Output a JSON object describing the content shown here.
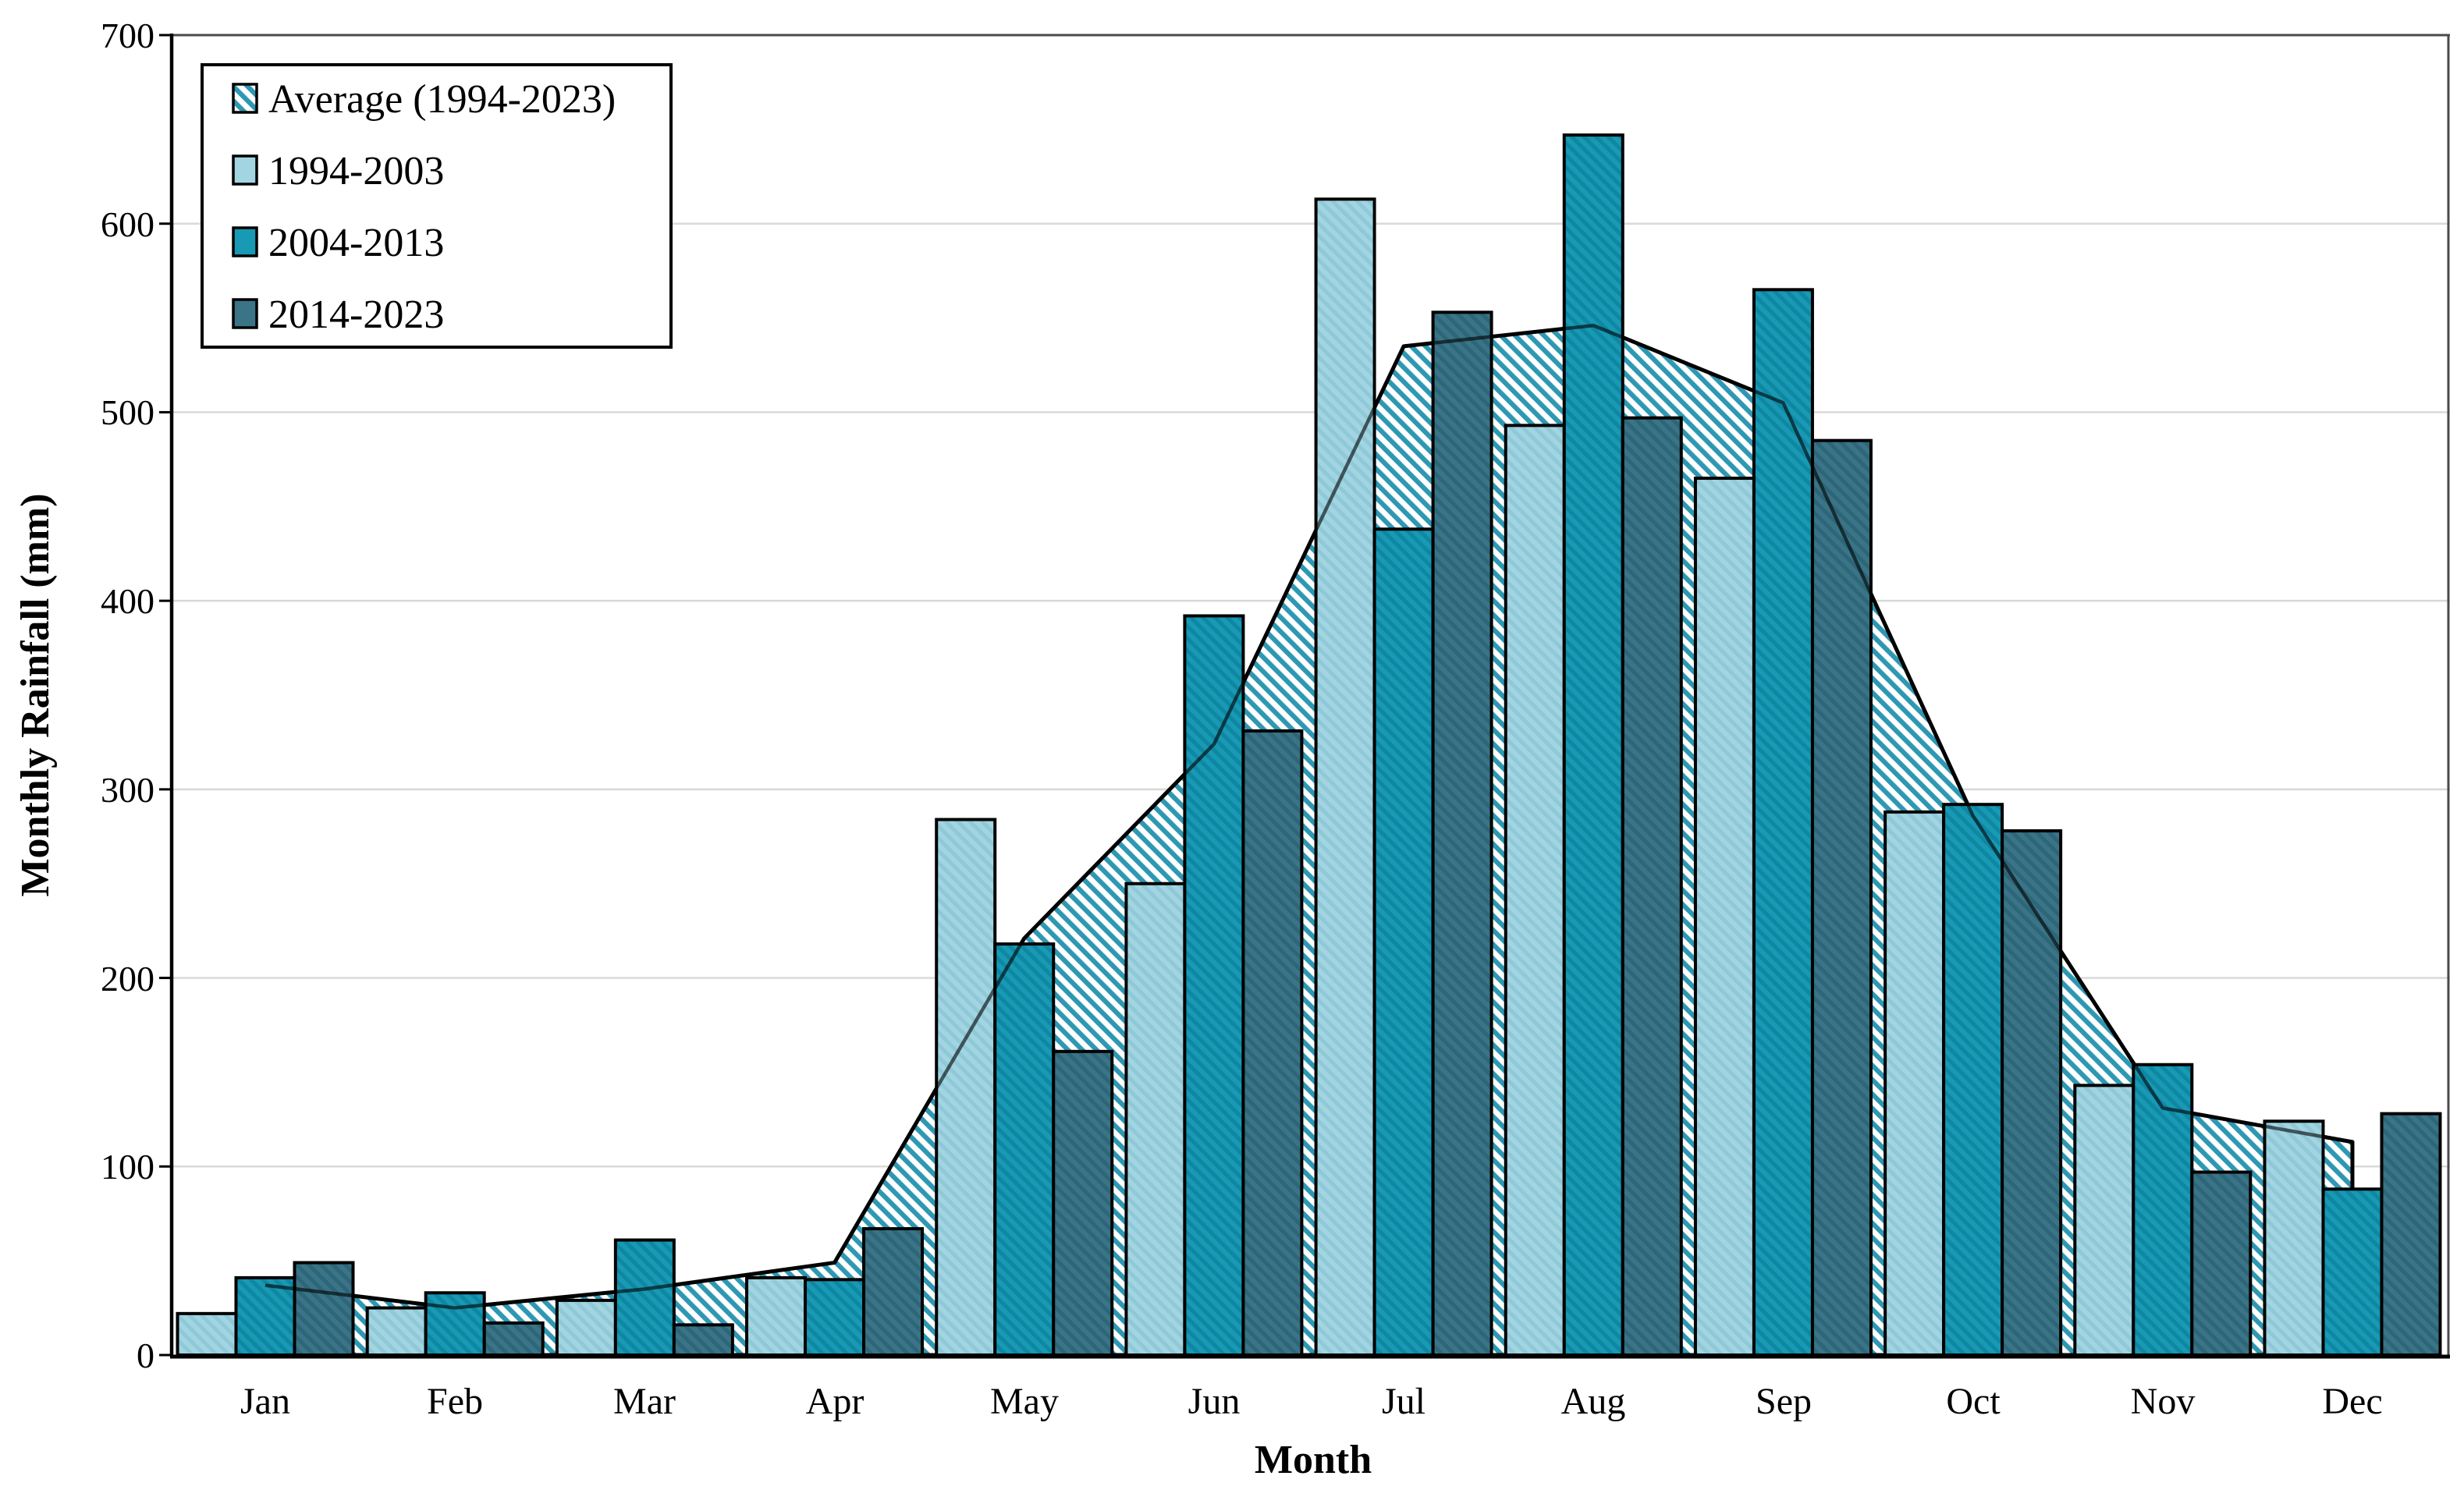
{
  "axes": {
    "y": {
      "title": "Monthly Rainfall (mm)",
      "ticks": [
        "0",
        "100",
        "200",
        "300",
        "400",
        "500",
        "600",
        "700"
      ],
      "min": 0,
      "max": 700,
      "step": 100
    },
    "x": {
      "title": "Month"
    }
  },
  "colors": {
    "background": "#ffffff",
    "gridline": "#d9d9d9",
    "frame": "#4a4a4a",
    "axis": "#000000",
    "bar_outline": "#000000",
    "avg_hatch_stripe": "#2e98b2",
    "series_1994_2003": "#a2d5e1",
    "series_2004_2013": "#1899b4",
    "series_2014_2023": "#3a7486"
  },
  "legend": {
    "position": "upper-left",
    "items": [
      {
        "label": "Average (1994-2023)",
        "swatch": "hatch"
      },
      {
        "label": "1994-2003",
        "swatch": "light-blue"
      },
      {
        "label": "2004-2013",
        "swatch": "teal"
      },
      {
        "label": "2014-2023",
        "swatch": "dark-teal"
      }
    ]
  },
  "chart_data": {
    "type": "bar",
    "title": "",
    "xlabel": "Month",
    "ylabel": "Monthly Rainfall (mm)",
    "ylim": [
      0,
      700
    ],
    "grid": true,
    "legend_position": "upper-left",
    "categories": [
      "Jan",
      "Feb",
      "Mar",
      "Apr",
      "May",
      "Jun",
      "Jul",
      "Aug",
      "Sep",
      "Oct",
      "Nov",
      "Dec"
    ],
    "series": [
      {
        "name": "Average (1994-2023)",
        "style": "hatched-area",
        "values": [
          37,
          25,
          35,
          49,
          221,
          324,
          535,
          546,
          505,
          286,
          131,
          113
        ]
      },
      {
        "name": "1994-2003",
        "style": "bar",
        "color": "#a2d5e1",
        "values": [
          22,
          25,
          29,
          41,
          284,
          250,
          613,
          493,
          465,
          288,
          143,
          124
        ]
      },
      {
        "name": "2004-2013",
        "style": "bar",
        "color": "#1899b4",
        "values": [
          41,
          33,
          61,
          40,
          218,
          392,
          438,
          647,
          565,
          292,
          154,
          88
        ]
      },
      {
        "name": "2014-2023",
        "style": "bar",
        "color": "#3a7486",
        "values": [
          49,
          17,
          16,
          67,
          161,
          331,
          553,
          497,
          485,
          278,
          97,
          128
        ]
      }
    ]
  }
}
